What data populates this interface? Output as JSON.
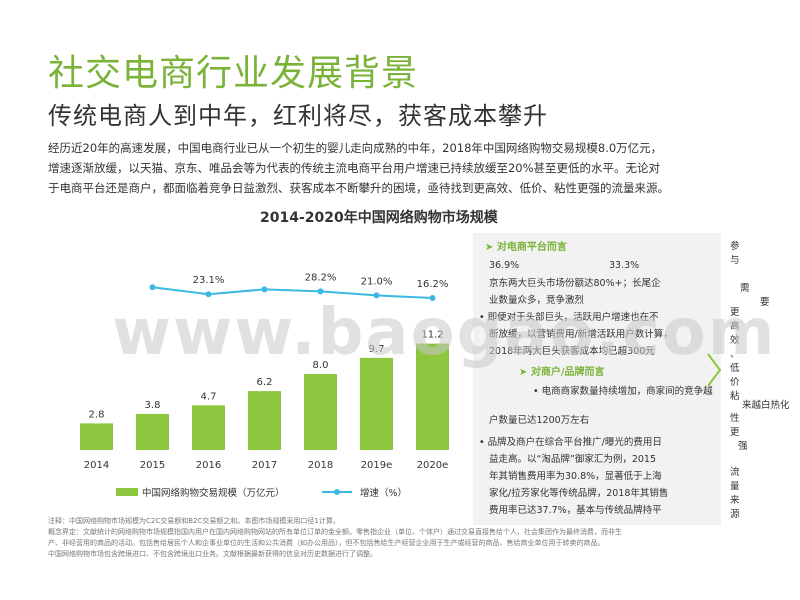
{
  "title": "社交电商行业发展背景",
  "subtitle": "传统电商人到中年，红利将尽，获客成本攀升",
  "intro": [
    "经历近20年的高速发展，中国电商行业已从一个初生的婴儿走向成熟的中年，2018年中国网络购物交易规模8.0万亿元，",
    "增速逐渐放缓，以天猫、京东、唯品会等为代表的传统主流电商平台用户增速已持续放缓至20%甚至更低的水平。无论对",
    "于电商平台还是商户，都面临着竞争日益激烈、获客成本不断攀升的困境，亟待找到更高效、低价、粘性更强的流量来源。"
  ],
  "chart_data": {
    "type": "bar",
    "title": "2014-2020年中国网络购物市场规模",
    "categories": [
      "2014",
      "2015",
      "2016",
      "2017",
      "2018",
      "2019e",
      "2020e"
    ],
    "series": [
      {
        "name": "中国网络购物交易规模（万亿元）",
        "type": "bar",
        "values": [
          2.8,
          3.8,
          4.7,
          6.2,
          8.0,
          9.7,
          11.2
        ],
        "labels": [
          "2.8",
          "3.8",
          "4.7",
          "6.2",
          "8.0",
          "9.7",
          "11.2"
        ]
      },
      {
        "name": "增速（%）",
        "type": "line",
        "values": [
          null,
          35.7,
          23.1,
          31.9,
          28.2,
          21.0,
          16.2
        ],
        "labels": [
          null,
          null,
          "23.1%",
          null,
          "28.2%",
          "21.0%",
          "16.2%"
        ]
      }
    ],
    "ylim": [
      0,
      12
    ],
    "colors": {
      "bar": "#8dc63f",
      "line": "#3db7e4"
    },
    "legend_position": "bottom"
  },
  "panel": {
    "title1": "➤ 对电商平台而言",
    "values_row": [
      "36.9%",
      "33.3%"
    ],
    "lines1": [
      "京东两大巨头市场份额达80%+；长尾企",
      "业数量众多，竞争激烈",
      "• 即便对于头部巨头，活跃用户增速也在不",
      "断放缓，以营销费用/新增活跃用户数计算，",
      "2018年两大巨头获客成本均已超300元"
    ],
    "title2": "➤ 对商户/品牌而言",
    "lines2": [
      "• 电商商家数量持续增加，商家间的竞争越",
      "户数量已达1200万左右",
      "• 品牌及商户在综合平台推广/曝光的费用日",
      "益走高。以“淘品牌”御家汇为例，2015",
      "年其销售费用率为30.8%，显著低于上海",
      "家化/拉芳家化等传统品牌，2018年其销售",
      "费用率已达37.7%，基本与传统品牌持平"
    ]
  },
  "right_texts": [
    "参",
    "与",
    "需",
    "要",
    "更",
    "高",
    "效",
    "、",
    "低",
    "价",
    "粘",
    "来越白热化",
    "性",
    "更",
    "强",
    "流",
    "量",
    "来",
    "源"
  ],
  "notes": [
    "注释：中国网络购物市场规模为C2C交易额和B2C交易额之和。本图市场规模采用口径1计算。",
    "概念界定：文献统计的网络购物市场规模指国内用户在国内网络购物网站的所有单位订单的金全额。零售指企业（单位、个体户）通过交易直接售给个人、社会集团作为最终消费，而非生",
    "产、非经营用的商品的活动。包括售给居民个人和企事业单位的生活和公共消费（如办公用品），但不包括售给生产经营企业用于生产或经营的商品、售给商业单位用于转卖的商品。",
    "中国网络购物市场包含跨境进口、不包含跨境出口业务。文献根据最新获得的信息对历史数据进行了调整。"
  ],
  "watermark": "www.baogao.com"
}
